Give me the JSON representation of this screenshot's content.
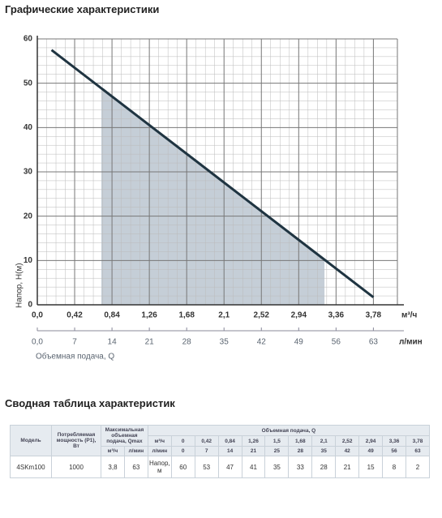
{
  "title": "Графические характеристики",
  "chart_data": {
    "type": "line",
    "y_label": "Напор, H(м)",
    "x_label": "Объемная подача, Q",
    "x_unit": "м³/ч",
    "x2_unit": "л/мин",
    "xlim": [
      0,
      4.05
    ],
    "ylim": [
      0,
      60
    ],
    "x2lim": [
      0,
      67.5
    ],
    "xticks": [
      {
        "value": 0,
        "label": "0,0"
      },
      {
        "value": 0.42,
        "label": "0,42"
      },
      {
        "value": 0.84,
        "label": "0,84"
      },
      {
        "value": 1.26,
        "label": "1,26"
      },
      {
        "value": 1.68,
        "label": "1,68"
      },
      {
        "value": 2.1,
        "label": "2,1"
      },
      {
        "value": 2.52,
        "label": "2,52"
      },
      {
        "value": 2.94,
        "label": "2,94"
      },
      {
        "value": 3.36,
        "label": "3,36"
      },
      {
        "value": 3.78,
        "label": "3,78"
      }
    ],
    "x2ticks": [
      {
        "value": 0,
        "label": "0,0"
      },
      7,
      14,
      21,
      28,
      35,
      42,
      49,
      56,
      63
    ],
    "yticks": [
      0,
      10,
      20,
      30,
      40,
      50,
      60
    ],
    "grid": true,
    "minor_grid": true,
    "series": [
      {
        "x": [
          0.16,
          3.78
        ],
        "values": [
          57.5,
          1.7
        ],
        "color": "#1f3441"
      }
    ],
    "shaded_range": {
      "x": [
        0.72,
        3.23
      ],
      "color": "#c5ced7"
    }
  },
  "table": {
    "title": "Сводная таблица характеристик",
    "headers": {
      "model": "Модель",
      "power": "Потребляемая мощность (P1), Вт",
      "qmax": "Максимальная объемная подача, Qmax",
      "qmax_units": [
        "м³/ч",
        "л/мин"
      ],
      "flow": "Объемная подача, Q",
      "flow_units": [
        "м³/ч",
        "л/мин"
      ]
    },
    "flow_m3h": [
      "0",
      "0,42",
      "0,84",
      "1,26",
      "1,5",
      "1,68",
      "2,1",
      "2,52",
      "2,94",
      "3,36",
      "3,78"
    ],
    "flow_lmin": [
      0,
      7,
      14,
      21,
      25,
      28,
      35,
      42,
      49,
      56,
      63
    ],
    "rows": [
      {
        "model": "4SKm100",
        "power": 1000,
        "qmax_m3h": "3,8",
        "qmax_lmin": 63,
        "label": "Напор, м",
        "head": [
          60,
          53,
          47,
          41,
          35,
          33,
          28,
          21,
          15,
          8,
          2
        ]
      }
    ]
  }
}
